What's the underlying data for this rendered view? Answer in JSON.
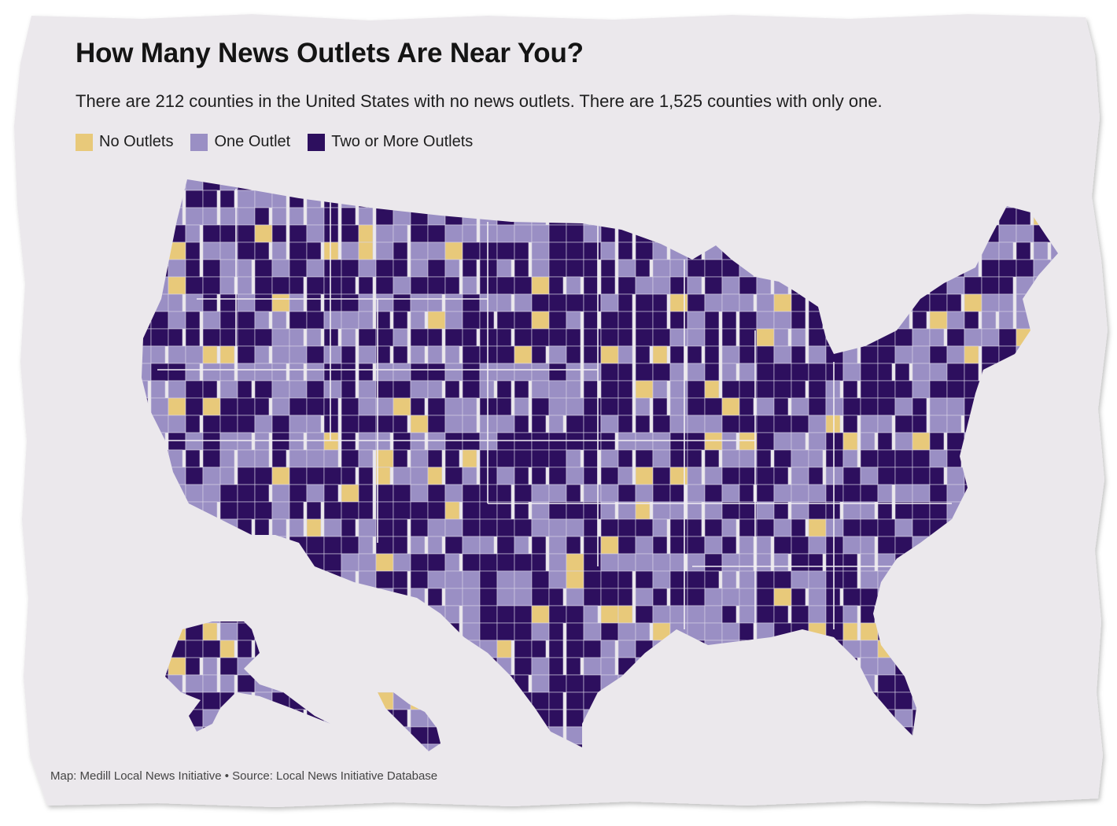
{
  "title": "How Many News Outlets Are Near You?",
  "subtitle": "There are 212 counties in the United States with no news outlets. There are 1,525 counties with only one.",
  "legend": [
    {
      "label": "No Outlets",
      "color": "#e8c97a"
    },
    {
      "label": "One Outlet",
      "color": "#9a8fc4"
    },
    {
      "label": "Two or More Outlets",
      "color": "#2d0f5e"
    }
  ],
  "credit": "Map: Medill Local News Initiative • Source: Local News Initiative Database",
  "colors": {
    "paper": "#e9e6ea",
    "none": "#e8c97a",
    "one": "#9a8fc4",
    "many": "#2d0f5e",
    "border": "#f1eef4"
  }
}
